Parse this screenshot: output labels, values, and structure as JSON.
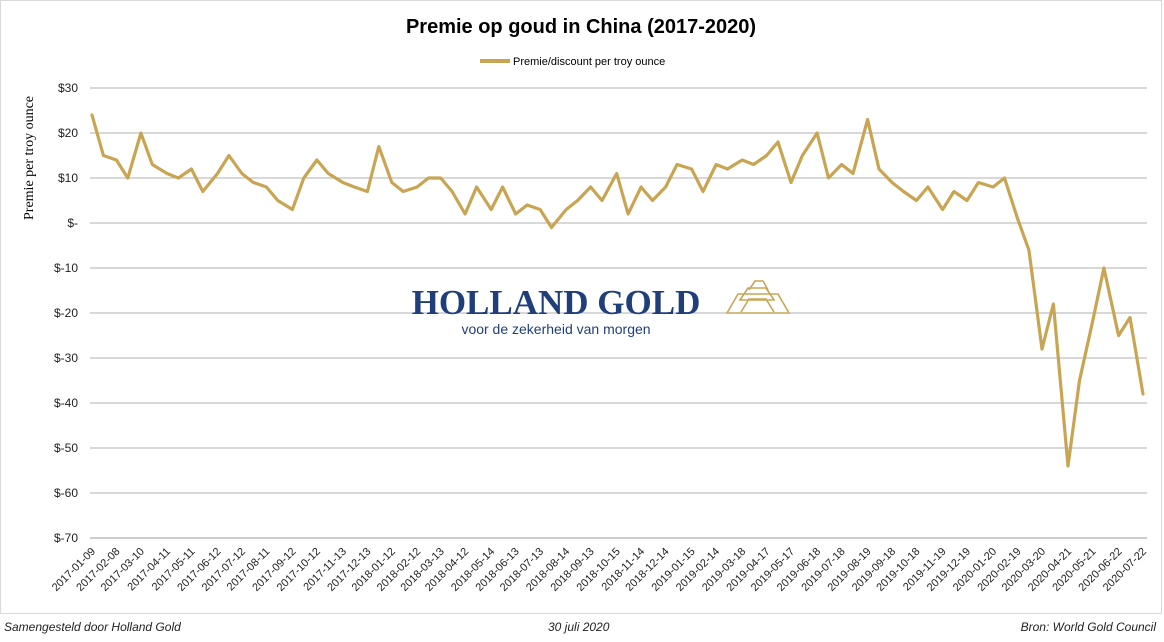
{
  "chart_data": {
    "type": "line",
    "title": "Premie op goud in China (2017-2020)",
    "xlabel": "",
    "ylabel": "Premie per troy ounce",
    "legend_position": "top",
    "grid": true,
    "ylim": [
      -70,
      30
    ],
    "y_ticks": [
      30,
      20,
      10,
      0,
      -10,
      -20,
      -30,
      -40,
      -50,
      -60,
      -70
    ],
    "y_tick_labels": [
      "$30",
      "$20",
      "$10",
      "$-",
      "$-10",
      "$-20",
      "$-30",
      "$-40",
      "$-50",
      "$-60",
      "$-70"
    ],
    "x_tick_labels": [
      "2017-01-09",
      "2017-02-08",
      "2017-03-10",
      "2017-04-11",
      "2017-05-11",
      "2017-06-12",
      "2017-07-12",
      "2017-08-11",
      "2017-09-12",
      "2017-10-12",
      "2017-11-13",
      "2017-12-13",
      "2018-01-12",
      "2018-02-12",
      "2018-03-13",
      "2018-04-12",
      "2018-05-14",
      "2018-06-13",
      "2018-07-13",
      "2018-08-14",
      "2018-09-13",
      "2018-10-15",
      "2018-11-14",
      "2018-12-14",
      "2019-01-15",
      "2019-02-14",
      "2019-03-18",
      "2019-04-17",
      "2019-05-17",
      "2019-06-18",
      "2019-07-18",
      "2019-08-19",
      "2019-09-18",
      "2019-10-18",
      "2019-11-19",
      "2019-12-19",
      "2020-01-20",
      "2020-02-19",
      "2020-03-20",
      "2020-04-21",
      "2020-05-21",
      "2020-06-22",
      "2020-07-22"
    ],
    "series": [
      {
        "name": "Premie/discount per troy ounce",
        "color": "#c9a553",
        "x": [
          "2017-01-09",
          "2017-01-23",
          "2017-02-08",
          "2017-02-22",
          "2017-03-10",
          "2017-03-24",
          "2017-04-11",
          "2017-04-25",
          "2017-05-11",
          "2017-05-25",
          "2017-06-12",
          "2017-06-26",
          "2017-07-12",
          "2017-07-26",
          "2017-08-11",
          "2017-08-25",
          "2017-09-12",
          "2017-09-26",
          "2017-10-12",
          "2017-10-26",
          "2017-11-13",
          "2017-11-27",
          "2017-12-13",
          "2017-12-27",
          "2018-01-12",
          "2018-01-26",
          "2018-02-12",
          "2018-02-26",
          "2018-03-13",
          "2018-03-27",
          "2018-04-12",
          "2018-04-26",
          "2018-05-14",
          "2018-05-28",
          "2018-06-13",
          "2018-06-27",
          "2018-07-13",
          "2018-07-27",
          "2018-08-14",
          "2018-08-28",
          "2018-09-13",
          "2018-09-27",
          "2018-10-15",
          "2018-10-29",
          "2018-11-14",
          "2018-11-28",
          "2018-12-14",
          "2018-12-28",
          "2019-01-15",
          "2019-01-29",
          "2019-02-14",
          "2019-02-28",
          "2019-03-18",
          "2019-04-01",
          "2019-04-17",
          "2019-05-01",
          "2019-05-17",
          "2019-05-31",
          "2019-06-18",
          "2019-07-02",
          "2019-07-18",
          "2019-08-01",
          "2019-08-19",
          "2019-09-02",
          "2019-09-18",
          "2019-10-02",
          "2019-10-18",
          "2019-11-01",
          "2019-11-19",
          "2019-12-03",
          "2019-12-19",
          "2020-01-02",
          "2020-01-20",
          "2020-02-03",
          "2020-02-19",
          "2020-03-04",
          "2020-03-20",
          "2020-04-03",
          "2020-04-21",
          "2020-05-05",
          "2020-05-21",
          "2020-06-04",
          "2020-06-22",
          "2020-07-06",
          "2020-07-22"
        ],
        "values": [
          24,
          15,
          14,
          10,
          20,
          13,
          11,
          10,
          12,
          7,
          11,
          15,
          11,
          9,
          8,
          5,
          3,
          10,
          14,
          11,
          9,
          8,
          7,
          17,
          9,
          7,
          8,
          10,
          10,
          7,
          2,
          8,
          3,
          8,
          2,
          4,
          3,
          -1,
          3,
          5,
          8,
          5,
          11,
          2,
          8,
          5,
          8,
          13,
          12,
          7,
          13,
          12,
          14,
          13,
          15,
          18,
          9,
          15,
          20,
          10,
          13,
          11,
          23,
          12,
          9,
          7,
          5,
          8,
          3,
          7,
          5,
          9,
          8,
          10,
          1,
          -6,
          -28,
          -18,
          -54,
          -35,
          -22,
          -10,
          -25,
          -21,
          -38
        ]
      }
    ]
  },
  "watermark": {
    "brand": "HOLLAND GOLD",
    "tagline": "voor de zekerheid van morgen"
  },
  "footer": {
    "left": "Samengesteld door Holland Gold",
    "center": "30 juli 2020",
    "right": "Bron: World Gold Council"
  }
}
